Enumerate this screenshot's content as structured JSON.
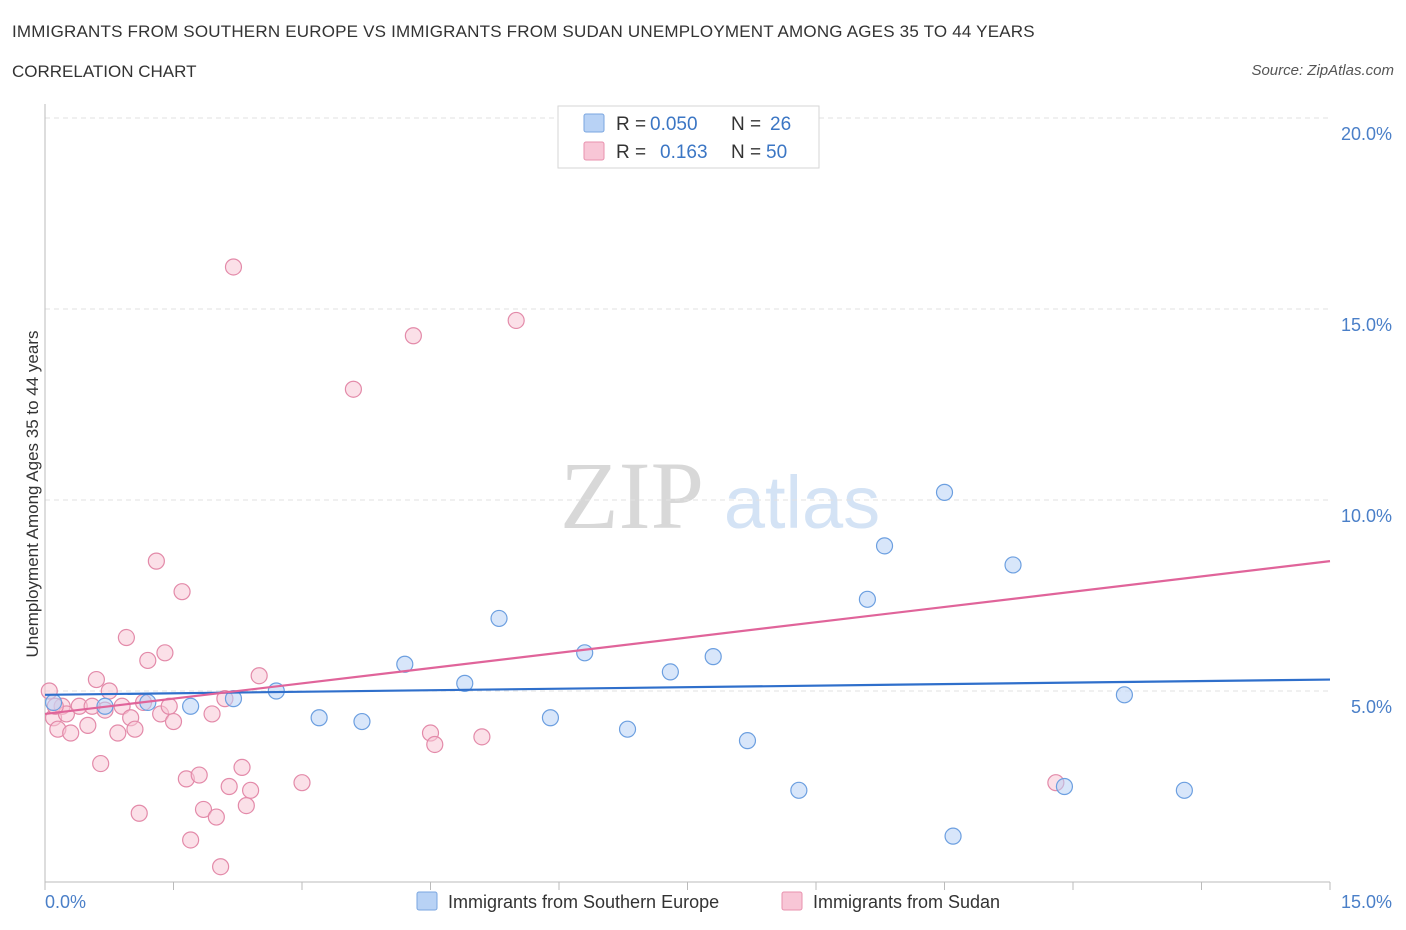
{
  "title": "IMMIGRANTS FROM SOUTHERN EUROPE VS IMMIGRANTS FROM SUDAN UNEMPLOYMENT AMONG AGES 35 TO 44 YEARS",
  "subtitle": "CORRELATION CHART",
  "source": "Source: ZipAtlas.com",
  "watermark": {
    "zip": "ZIP",
    "atlas": "atlas"
  },
  "legend_top": [
    {
      "r_label": "R =",
      "r_value": "0.050",
      "n_label": "N =",
      "n_value": "26",
      "color": "#b8d2f5",
      "stroke": "#7aa6e0"
    },
    {
      "r_label": "R =",
      "r_value": "0.163",
      "n_label": "N =",
      "n_value": "50",
      "color": "#f8c6d6",
      "stroke": "#e891ae"
    }
  ],
  "chart_data": {
    "type": "scatter",
    "title": "IMMIGRANTS FROM SOUTHERN EUROPE VS IMMIGRANTS FROM SUDAN UNEMPLOYMENT AMONG AGES 35 TO 44 YEARS",
    "xlabel": "",
    "ylabel": "Unemployment Among Ages 35 to 44 years",
    "xlim": [
      0,
      15
    ],
    "ylim": [
      0,
      20
    ],
    "x_tick_labels": [
      "0.0%",
      "15.0%"
    ],
    "y_ticks": [
      5,
      10,
      15,
      20
    ],
    "y_tick_labels": [
      "5.0%",
      "10.0%",
      "15.0%",
      "20.0%"
    ],
    "grid": true,
    "series": [
      {
        "name": "Immigrants from Southern Europe",
        "color": "#b8d2f5",
        "stroke": "#6c9fe0",
        "line_color": "#2f6fcb",
        "trend": [
          [
            0,
            4.9
          ],
          [
            15,
            5.3
          ]
        ],
        "points": [
          [
            0.1,
            4.7
          ],
          [
            0.7,
            4.6
          ],
          [
            1.2,
            4.7
          ],
          [
            1.7,
            4.6
          ],
          [
            2.2,
            4.8
          ],
          [
            2.7,
            5.0
          ],
          [
            3.2,
            4.3
          ],
          [
            3.7,
            4.2
          ],
          [
            4.2,
            5.7
          ],
          [
            4.9,
            5.2
          ],
          [
            5.3,
            6.9
          ],
          [
            5.9,
            4.3
          ],
          [
            6.3,
            6.0
          ],
          [
            6.8,
            4.0
          ],
          [
            7.3,
            5.5
          ],
          [
            7.8,
            5.9
          ],
          [
            8.2,
            3.7
          ],
          [
            8.8,
            2.4
          ],
          [
            9.6,
            7.4
          ],
          [
            9.8,
            8.8
          ],
          [
            10.5,
            10.2
          ],
          [
            10.6,
            1.2
          ],
          [
            11.3,
            8.3
          ],
          [
            11.9,
            2.5
          ],
          [
            12.6,
            4.9
          ],
          [
            13.3,
            2.4
          ]
        ]
      },
      {
        "name": "Immigrants from Sudan",
        "color": "#f8c6d6",
        "stroke": "#e38aa9",
        "line_color": "#e0649a",
        "trend": [
          [
            0,
            4.4
          ],
          [
            15,
            8.4
          ]
        ],
        "points": [
          [
            0.05,
            5.0
          ],
          [
            0.1,
            4.3
          ],
          [
            0.15,
            4.0
          ],
          [
            0.2,
            4.6
          ],
          [
            0.25,
            4.4
          ],
          [
            0.3,
            3.9
          ],
          [
            0.4,
            4.6
          ],
          [
            0.5,
            4.1
          ],
          [
            0.6,
            5.3
          ],
          [
            0.65,
            3.1
          ],
          [
            0.7,
            4.5
          ],
          [
            0.75,
            5.0
          ],
          [
            0.85,
            3.9
          ],
          [
            0.9,
            4.6
          ],
          [
            0.95,
            6.4
          ],
          [
            1.0,
            4.3
          ],
          [
            1.05,
            4.0
          ],
          [
            1.1,
            1.8
          ],
          [
            1.2,
            5.8
          ],
          [
            1.3,
            8.4
          ],
          [
            1.35,
            4.4
          ],
          [
            1.4,
            6.0
          ],
          [
            1.45,
            4.6
          ],
          [
            1.5,
            4.2
          ],
          [
            1.6,
            7.6
          ],
          [
            1.65,
            2.7
          ],
          [
            1.7,
            1.1
          ],
          [
            1.8,
            2.8
          ],
          [
            1.85,
            1.9
          ],
          [
            1.95,
            4.4
          ],
          [
            2.0,
            1.7
          ],
          [
            2.05,
            0.4
          ],
          [
            2.1,
            4.8
          ],
          [
            2.15,
            2.5
          ],
          [
            2.2,
            16.1
          ],
          [
            2.3,
            3.0
          ],
          [
            2.35,
            2.0
          ],
          [
            2.4,
            2.4
          ],
          [
            2.5,
            5.4
          ],
          [
            3.0,
            2.6
          ],
          [
            3.6,
            12.9
          ],
          [
            4.3,
            14.3
          ],
          [
            4.5,
            3.9
          ],
          [
            4.55,
            3.6
          ],
          [
            5.1,
            3.8
          ],
          [
            5.5,
            14.7
          ],
          [
            11.8,
            2.6
          ],
          [
            0.12,
            4.6
          ],
          [
            0.55,
            4.6
          ],
          [
            1.15,
            4.7
          ]
        ]
      }
    ]
  }
}
